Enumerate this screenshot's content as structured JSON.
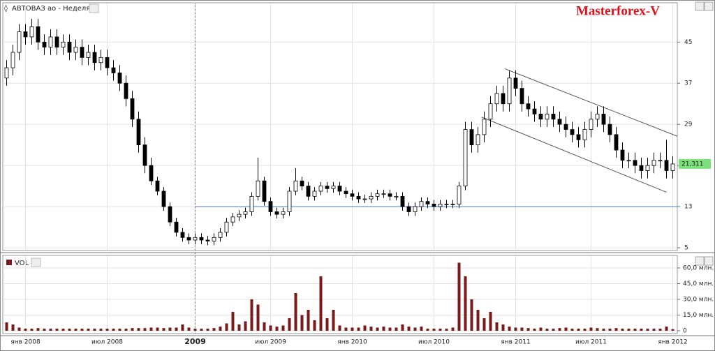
{
  "chart_data": {
    "type": "candlestick",
    "title": "АВТОВАЗ ао - Неделя",
    "brand": "Masterforex-V",
    "categories": [
      null,
      null,
      null,
      "янв 2008",
      null,
      null,
      null,
      null,
      null,
      null,
      null,
      null,
      null,
      null,
      null,
      null,
      "июл 2008",
      null,
      null,
      null,
      null,
      null,
      null,
      null,
      null,
      null,
      null,
      null,
      null,
      null,
      "2009",
      null,
      null,
      null,
      null,
      null,
      null,
      null,
      null,
      null,
      null,
      null,
      "июл 2009",
      null,
      null,
      null,
      null,
      null,
      null,
      null,
      null,
      null,
      null,
      null,
      null,
      "янв 2010",
      null,
      null,
      null,
      null,
      null,
      null,
      null,
      null,
      null,
      null,
      null,
      null,
      "июл 2010",
      null,
      null,
      null,
      null,
      null,
      null,
      null,
      null,
      null,
      null,
      null,
      null,
      "янв 2011",
      null,
      null,
      null,
      null,
      null,
      null,
      null,
      null,
      null,
      null,
      null,
      "июл 2011",
      null,
      null,
      null,
      null,
      null,
      null,
      null,
      null,
      null,
      null,
      null,
      null,
      "янв 2012"
    ],
    "open": [
      38,
      40,
      43,
      47,
      46,
      48,
      45,
      44,
      46,
      44,
      45,
      43,
      44,
      42,
      43,
      41,
      42,
      40,
      39,
      37,
      34,
      30,
      25,
      21,
      18,
      16,
      13,
      10,
      8,
      7,
      6.5,
      7,
      6.5,
      6.3,
      7,
      8,
      10,
      11,
      11.5,
      12,
      15,
      18,
      14,
      12,
      11.5,
      12,
      16,
      18,
      17,
      15,
      16,
      17,
      16.5,
      17,
      16,
      15.5,
      15,
      14.5,
      14.5,
      15,
      15.5,
      15.5,
      15,
      15,
      13,
      12,
      13,
      14,
      13.5,
      13,
      13.5,
      13.5,
      13.5,
      17,
      28,
      25,
      27,
      30,
      33,
      35,
      33,
      38,
      36,
      33,
      32,
      31,
      30,
      31,
      30,
      29,
      28,
      27,
      26,
      28,
      30,
      31,
      29,
      27,
      24,
      22,
      22,
      21,
      20,
      21,
      22,
      22,
      20
    ],
    "high": [
      41.5,
      44.5,
      48.5,
      48.5,
      49.5,
      49.5,
      46.5,
      47.5,
      47.5,
      46.5,
      46.5,
      45.5,
      45.5,
      44.5,
      44.5,
      43.5,
      43.5,
      41.5,
      40.5,
      38.5,
      35.5,
      31.5,
      26.5,
      22.5,
      18.8,
      16.8,
      13.8,
      10.8,
      8.8,
      7.8,
      7.8,
      7.8,
      7.3,
      7.8,
      8.8,
      10.8,
      11.8,
      12.3,
      12.8,
      15.8,
      22.5,
      18.8,
      14.8,
      12.8,
      12.8,
      16.8,
      20.5,
      18.8,
      17.8,
      16.8,
      17.8,
      17.8,
      17.8,
      17.8,
      16.8,
      16.3,
      15.8,
      15.3,
      15.8,
      16.3,
      16.3,
      16.3,
      15.8,
      15.8,
      13.8,
      13.8,
      14.8,
      14.8,
      14.3,
      14.3,
      14.3,
      14.3,
      17.8,
      29.5,
      29.5,
      28.5,
      31.5,
      34.5,
      36.5,
      36.5,
      39.5,
      39.5,
      37.5,
      34.5,
      33.5,
      32.5,
      32.5,
      32.5,
      31.5,
      30.5,
      29.5,
      28.5,
      29.5,
      31.5,
      32.5,
      32.5,
      30.5,
      28.5,
      25.5,
      23.5,
      23.5,
      22.5,
      22.5,
      23.5,
      23.5,
      26,
      22.8
    ],
    "low": [
      36.5,
      38.5,
      41.5,
      44.5,
      44.5,
      43.5,
      42.5,
      42.5,
      42.5,
      42.5,
      41.5,
      41.5,
      40.5,
      40.5,
      39.5,
      39.5,
      38.5,
      37.5,
      35.5,
      32.5,
      28.5,
      23.5,
      19.5,
      17.2,
      15.2,
      12.2,
      9.2,
      7.2,
      6.2,
      5.7,
      5.7,
      5.7,
      5.5,
      5.5,
      6.2,
      7.2,
      9.2,
      10.2,
      10.7,
      11.2,
      14.2,
      13.2,
      11.2,
      10.7,
      10.7,
      11.2,
      15.2,
      16.2,
      14.2,
      14.2,
      15.2,
      15.7,
      15.7,
      15.2,
      14.7,
      14.2,
      13.7,
      13.7,
      13.7,
      14.2,
      14.7,
      14.2,
      14.2,
      12.2,
      11.2,
      11.2,
      12.2,
      12.7,
      12.2,
      12.2,
      12.7,
      12.7,
      12.7,
      16.2,
      23.5,
      23.5,
      25.5,
      28.5,
      31.5,
      31.5,
      31.5,
      34.5,
      31.5,
      30.5,
      29.5,
      28.5,
      28.5,
      28.5,
      27.5,
      26.5,
      25.5,
      24.5,
      24.5,
      26.5,
      28.5,
      27.5,
      25.5,
      22.5,
      20.5,
      20.5,
      19.5,
      18.5,
      18.5,
      19.5,
      20.5,
      18.5,
      18.5
    ],
    "close": [
      40,
      43,
      47,
      46,
      48,
      45,
      44,
      46,
      44,
      45,
      43,
      44,
      42,
      43,
      41,
      42,
      40,
      39,
      37,
      34,
      30,
      25,
      21,
      18,
      16,
      13,
      10,
      8,
      7,
      6.5,
      7,
      6.5,
      6.3,
      7,
      8,
      10,
      11,
      11.5,
      12,
      15,
      18,
      14,
      12,
      11.5,
      12,
      16,
      18,
      17,
      15,
      16,
      17,
      16.5,
      17,
      16,
      15.5,
      15,
      14.5,
      14.5,
      15,
      15.5,
      15.5,
      15,
      15,
      13,
      12,
      13,
      14,
      13.5,
      13,
      13.5,
      13.5,
      13.5,
      17,
      28,
      25,
      27,
      30,
      33,
      35,
      33,
      38,
      36,
      33,
      32,
      31,
      30,
      31,
      30,
      29,
      28,
      27,
      26,
      28,
      30,
      31,
      29,
      27,
      24,
      22,
      22,
      21,
      20,
      21,
      22,
      22,
      20,
      21.3
    ],
    "up_color": "#ffffff",
    "down_color": "#000000",
    "ylim": [
      4.6,
      52.5
    ],
    "yticks": [
      5,
      13,
      21,
      29,
      37,
      45
    ],
    "grid": true,
    "last_price": {
      "value": 21.311,
      "label": "21,311"
    },
    "hline": {
      "value": 13,
      "color": "#4a7fd4"
    },
    "trend_lines": [
      {
        "x": [
          79.3,
          106.7
        ],
        "y": [
          39.8,
          26.7
        ],
        "color": "#555555"
      },
      {
        "x": [
          75.6,
          105
        ],
        "y": [
          30.4,
          15.8
        ],
        "color": "#555555"
      }
    ],
    "volume": {
      "name": "VOL",
      "color": "#7a1a1a",
      "ylim": [
        -2.7,
        71.3
      ],
      "yticks": [
        0,
        {
          "value": 15,
          "label": "15,0 млн."
        },
        {
          "value": 30,
          "label": "30,0 млн."
        },
        {
          "value": 45,
          "label": "45,0 млн."
        },
        {
          "value": 60,
          "label": "60,0 млн."
        }
      ],
      "values": [
        8,
        6,
        3,
        2,
        2,
        2.5,
        2,
        2,
        2,
        2,
        2,
        2,
        2,
        2,
        2,
        2,
        2,
        2,
        2,
        2,
        2.5,
        2.5,
        2.5,
        3,
        3,
        2.5,
        3,
        3,
        6,
        3,
        2,
        2,
        2,
        2.5,
        4,
        7,
        18,
        6,
        9,
        30,
        25,
        8,
        5,
        4,
        5,
        12,
        36,
        15,
        20,
        10,
        52,
        12,
        20,
        5,
        3,
        3,
        3,
        5,
        4,
        3,
        4,
        3,
        3,
        6,
        4,
        3,
        4,
        2,
        2,
        2,
        2,
        3,
        65,
        52,
        30,
        20,
        12,
        18,
        8,
        6,
        4,
        3,
        3,
        2.5,
        2,
        3,
        2,
        2,
        2.5,
        3,
        2,
        2,
        2,
        3,
        2.5,
        2,
        2,
        2.5,
        2,
        2,
        2,
        2,
        2,
        2,
        2,
        4,
        1.5
      ]
    }
  }
}
